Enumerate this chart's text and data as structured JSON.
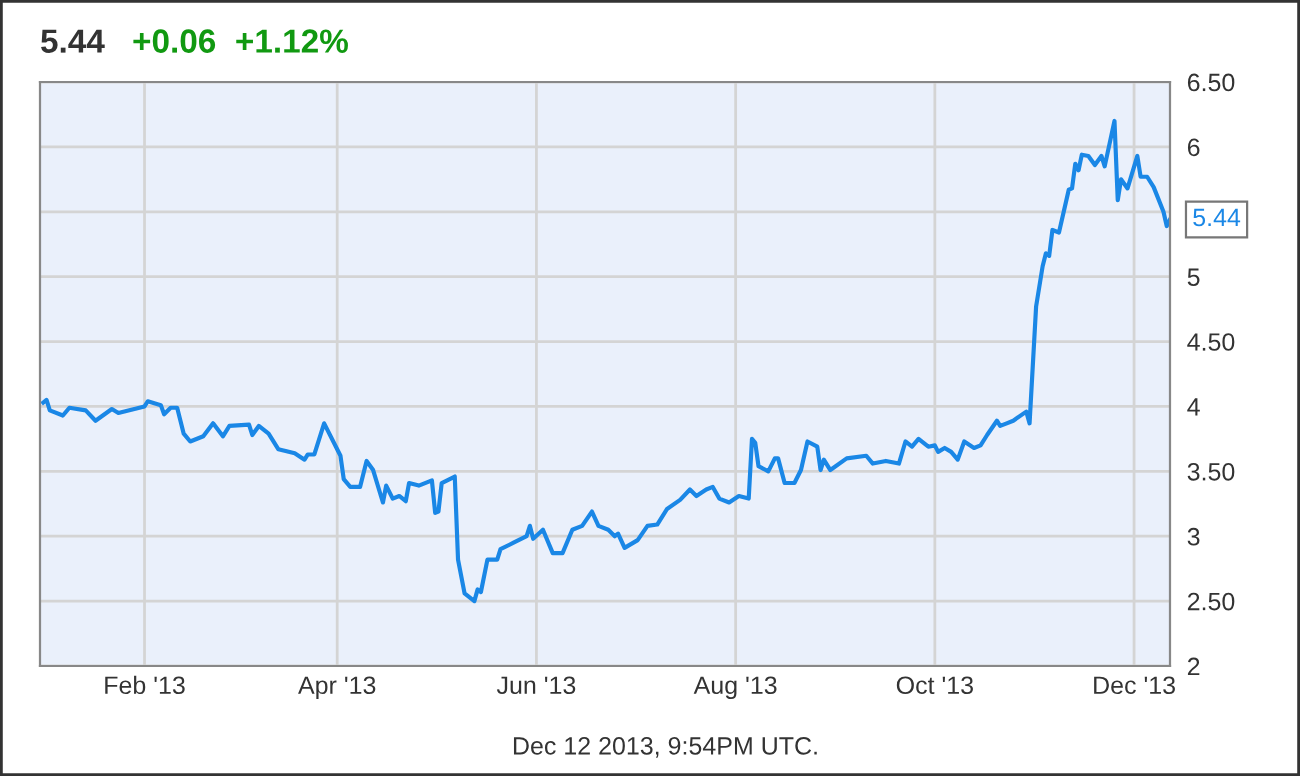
{
  "chart_data": {
    "type": "line",
    "title": "5.44",
    "subtitle": "+0.06  +1.12%",
    "annotations": [
      {
        "text": "5.44",
        "x": "2013-12-12",
        "y": 5.44
      },
      "Dec 12 2013, 9:54PM UTC."
    ],
    "x": [
      "2013-01-01",
      "2013-01-02",
      "2013-01-03",
      "2013-01-07",
      "2013-01-09",
      "2013-01-14",
      "2013-01-17",
      "2013-01-22",
      "2013-01-24",
      "2013-02-01",
      "2013-02-02",
      "2013-02-06",
      "2013-02-07",
      "2013-02-09",
      "2013-02-11",
      "2013-02-13",
      "2013-02-15",
      "2013-02-19",
      "2013-02-22",
      "2013-02-25",
      "2013-02-27",
      "2013-03-05",
      "2013-03-06",
      "2013-03-08",
      "2013-03-11",
      "2013-03-14",
      "2013-03-19",
      "2013-03-22",
      "2013-03-23",
      "2013-03-25",
      "2013-03-28",
      "2013-04-02",
      "2013-04-03",
      "2013-04-05",
      "2013-04-08",
      "2013-04-10",
      "2013-04-12",
      "2013-04-15",
      "2013-04-16",
      "2013-04-18",
      "2013-04-20",
      "2013-04-22",
      "2013-04-23",
      "2013-04-26",
      "2013-04-30",
      "2013-05-01",
      "2013-05-02",
      "2013-05-03",
      "2013-05-07",
      "2013-05-08",
      "2013-05-10",
      "2013-05-13",
      "2013-05-14",
      "2013-05-15",
      "2013-05-17",
      "2013-05-20",
      "2013-05-21",
      "2013-05-25",
      "2013-05-29",
      "2013-05-30",
      "2013-05-31",
      "2013-06-03",
      "2013-06-06",
      "2013-06-09",
      "2013-06-12",
      "2013-06-15",
      "2013-06-18",
      "2013-06-20",
      "2013-06-23",
      "2013-06-25",
      "2013-06-26",
      "2013-06-28",
      "2013-07-02",
      "2013-07-05",
      "2013-07-08",
      "2013-07-11",
      "2013-07-15",
      "2013-07-18",
      "2013-07-20",
      "2013-07-23",
      "2013-07-25",
      "2013-07-27",
      "2013-07-30",
      "2013-08-02",
      "2013-08-05",
      "2013-08-06",
      "2013-08-07",
      "2013-08-08",
      "2013-08-11",
      "2013-08-13",
      "2013-08-14",
      "2013-08-16",
      "2013-08-19",
      "2013-08-21",
      "2013-08-23",
      "2013-08-26",
      "2013-08-27",
      "2013-08-28",
      "2013-08-30",
      "2013-09-04",
      "2013-09-10",
      "2013-09-12",
      "2013-09-16",
      "2013-09-20",
      "2013-09-22",
      "2013-09-24",
      "2013-09-26",
      "2013-09-29",
      "2013-10-01",
      "2013-10-02",
      "2013-10-04",
      "2013-10-06",
      "2013-10-08",
      "2013-10-10",
      "2013-10-13",
      "2013-10-15",
      "2013-10-17",
      "2013-10-20",
      "2013-10-21",
      "2013-10-23",
      "2013-10-25",
      "2013-10-29",
      "2013-10-30",
      "2013-11-01",
      "2013-11-03",
      "2013-11-04",
      "2013-11-05",
      "2013-11-06",
      "2013-11-08",
      "2013-11-11",
      "2013-11-12",
      "2013-11-13",
      "2013-11-14",
      "2013-11-15",
      "2013-11-17",
      "2013-11-19",
      "2013-11-21",
      "2013-11-22",
      "2013-11-25",
      "2013-11-26",
      "2013-11-27",
      "2013-11-29",
      "2013-12-02",
      "2013-12-03",
      "2013-12-05",
      "2013-12-07",
      "2013-12-10",
      "2013-12-11",
      "2013-12-12"
    ],
    "series": [
      {
        "color": "#1a87e6",
        "values": [
          4.03,
          4.05,
          3.97,
          3.93,
          3.99,
          3.97,
          3.89,
          3.98,
          3.95,
          4.0,
          4.04,
          4.01,
          3.94,
          3.99,
          3.99,
          3.79,
          3.73,
          3.77,
          3.87,
          3.77,
          3.85,
          3.86,
          3.78,
          3.85,
          3.79,
          3.67,
          3.64,
          3.59,
          3.63,
          3.63,
          3.87,
          3.62,
          3.44,
          3.38,
          3.38,
          3.58,
          3.51,
          3.26,
          3.39,
          3.29,
          3.31,
          3.27,
          3.41,
          3.39,
          3.43,
          3.18,
          3.19,
          3.41,
          3.46,
          2.82,
          2.56,
          2.5,
          2.59,
          2.57,
          2.82,
          2.82,
          2.9,
          2.95,
          3.0,
          3.08,
          2.98,
          3.05,
          2.87,
          2.87,
          3.05,
          3.08,
          3.19,
          3.08,
          3.05,
          3.0,
          3.02,
          2.91,
          2.97,
          3.08,
          3.09,
          3.21,
          3.28,
          3.36,
          3.31,
          3.36,
          3.38,
          3.29,
          3.26,
          3.31,
          3.29,
          3.75,
          3.72,
          3.54,
          3.5,
          3.6,
          3.6,
          3.41,
          3.41,
          3.51,
          3.73,
          3.69,
          3.51,
          3.59,
          3.51,
          3.6,
          3.62,
          3.56,
          3.58,
          3.56,
          3.73,
          3.69,
          3.75,
          3.69,
          3.7,
          3.65,
          3.68,
          3.65,
          3.59,
          3.73,
          3.68,
          3.7,
          3.78,
          3.89,
          3.85,
          3.87,
          3.89,
          3.96,
          3.87,
          4.77,
          5.08,
          5.18,
          5.16,
          5.36,
          5.34,
          5.67,
          5.68,
          5.87,
          5.82,
          5.94,
          5.93,
          5.86,
          5.93,
          5.85,
          6.2,
          5.59,
          5.75,
          5.68,
          5.93,
          5.77,
          5.77,
          5.69,
          5.5,
          5.39,
          5.44
        ]
      }
    ],
    "xlim": [
      "2012-12-31",
      "2013-12-12"
    ],
    "xticks": [
      {
        "value": "2013-02-01",
        "label": "Feb '13"
      },
      {
        "value": "2013-04-01",
        "label": "Apr '13"
      },
      {
        "value": "2013-06-01",
        "label": "Jun '13"
      },
      {
        "value": "2013-08-01",
        "label": "Aug '13"
      },
      {
        "value": "2013-10-01",
        "label": "Oct '13"
      },
      {
        "value": "2013-12-01",
        "label": "Dec '13"
      }
    ],
    "ylim": [
      2,
      6.5
    ],
    "yticks": [
      2,
      {
        "value": 2.5,
        "label": "2.50"
      },
      3,
      {
        "value": 3.5,
        "label": "3.50"
      },
      4,
      {
        "value": 4.5,
        "label": "4.50"
      },
      5,
      {
        "value": 5.5,
        "label": null
      },
      6,
      {
        "value": 6.5,
        "label": "6.50"
      }
    ],
    "grid": true,
    "marker": "none",
    "line_style": "solid"
  }
}
